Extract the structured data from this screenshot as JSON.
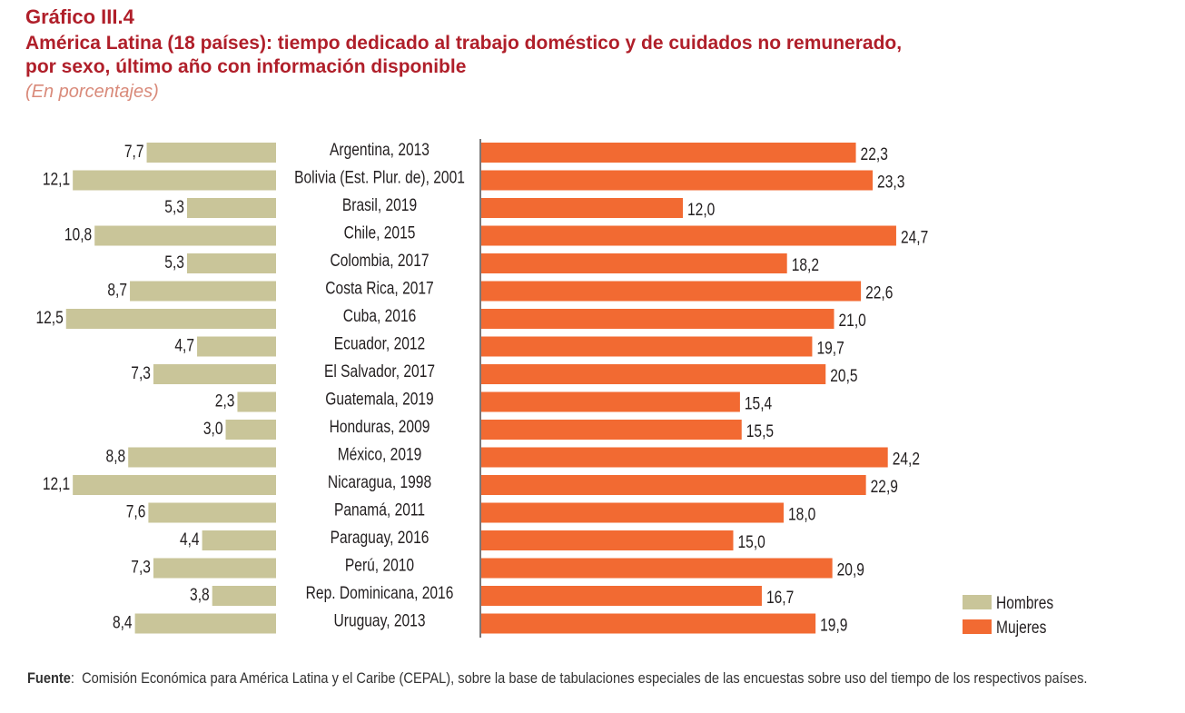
{
  "header": {
    "figure_number": "Gráfico III.4",
    "title_line1": "América Latina (18 países): tiempo dedicado al trabajo doméstico y de cuidados no remunerado,",
    "title_line2": "por sexo, último año con información disponible",
    "subtitle": "(En porcentajes)"
  },
  "chart_data": {
    "type": "bar",
    "orientation": "horizontal-butterfly",
    "categories": [
      "Argentina, 2013",
      "Bolivia (Est. Plur. de), 2001",
      "Brasil, 2019",
      "Chile, 2015",
      "Colombia, 2017",
      "Costa Rica, 2017",
      "Cuba, 2016",
      "Ecuador, 2012",
      "El Salvador, 2017",
      "Guatemala, 2019",
      "Honduras, 2009",
      "México, 2019",
      "Nicaragua, 1998",
      "Panamá, 2011",
      "Paraguay, 2016",
      "Perú, 2010",
      "Rep. Dominicana, 2016",
      "Uruguay, 2013"
    ],
    "series": [
      {
        "name": "Hombres",
        "color": "#c9c599",
        "values": [
          7.7,
          12.1,
          5.3,
          10.8,
          5.3,
          8.7,
          12.5,
          4.7,
          7.3,
          2.3,
          3.0,
          8.8,
          12.1,
          7.6,
          4.4,
          7.3,
          3.8,
          8.4
        ],
        "labels": [
          "7,7",
          "12,1",
          "5,3",
          "10,8",
          "5,3",
          "8,7",
          "12,5",
          "4,7",
          "7,3",
          "2,3",
          "3,0",
          "8,8",
          "12,1",
          "7,6",
          "4,4",
          "7,3",
          "3,8",
          "8,4"
        ]
      },
      {
        "name": "Mujeres",
        "color": "#f26a32",
        "values": [
          22.3,
          23.3,
          12.0,
          24.7,
          18.2,
          22.6,
          21.0,
          19.7,
          20.5,
          15.4,
          15.5,
          24.2,
          22.9,
          18.0,
          15.0,
          20.9,
          16.7,
          19.9
        ],
        "labels": [
          "22,3",
          "23,3",
          "12,0",
          "24,7",
          "18,2",
          "22,6",
          "21,0",
          "19,7",
          "20,5",
          "15,4",
          "15,5",
          "24,2",
          "22,9",
          "18,0",
          "15,0",
          "20,9",
          "16,7",
          "19,9"
        ]
      }
    ],
    "legend_position": "bottom-right",
    "grid": false
  },
  "source": {
    "label": "Fuente",
    "text": "Comisión Económica para América Latina y el Caribe (CEPAL), sobre la base de tabulaciones especiales de las encuestas sobre uso del tiempo de los respectivos países."
  }
}
